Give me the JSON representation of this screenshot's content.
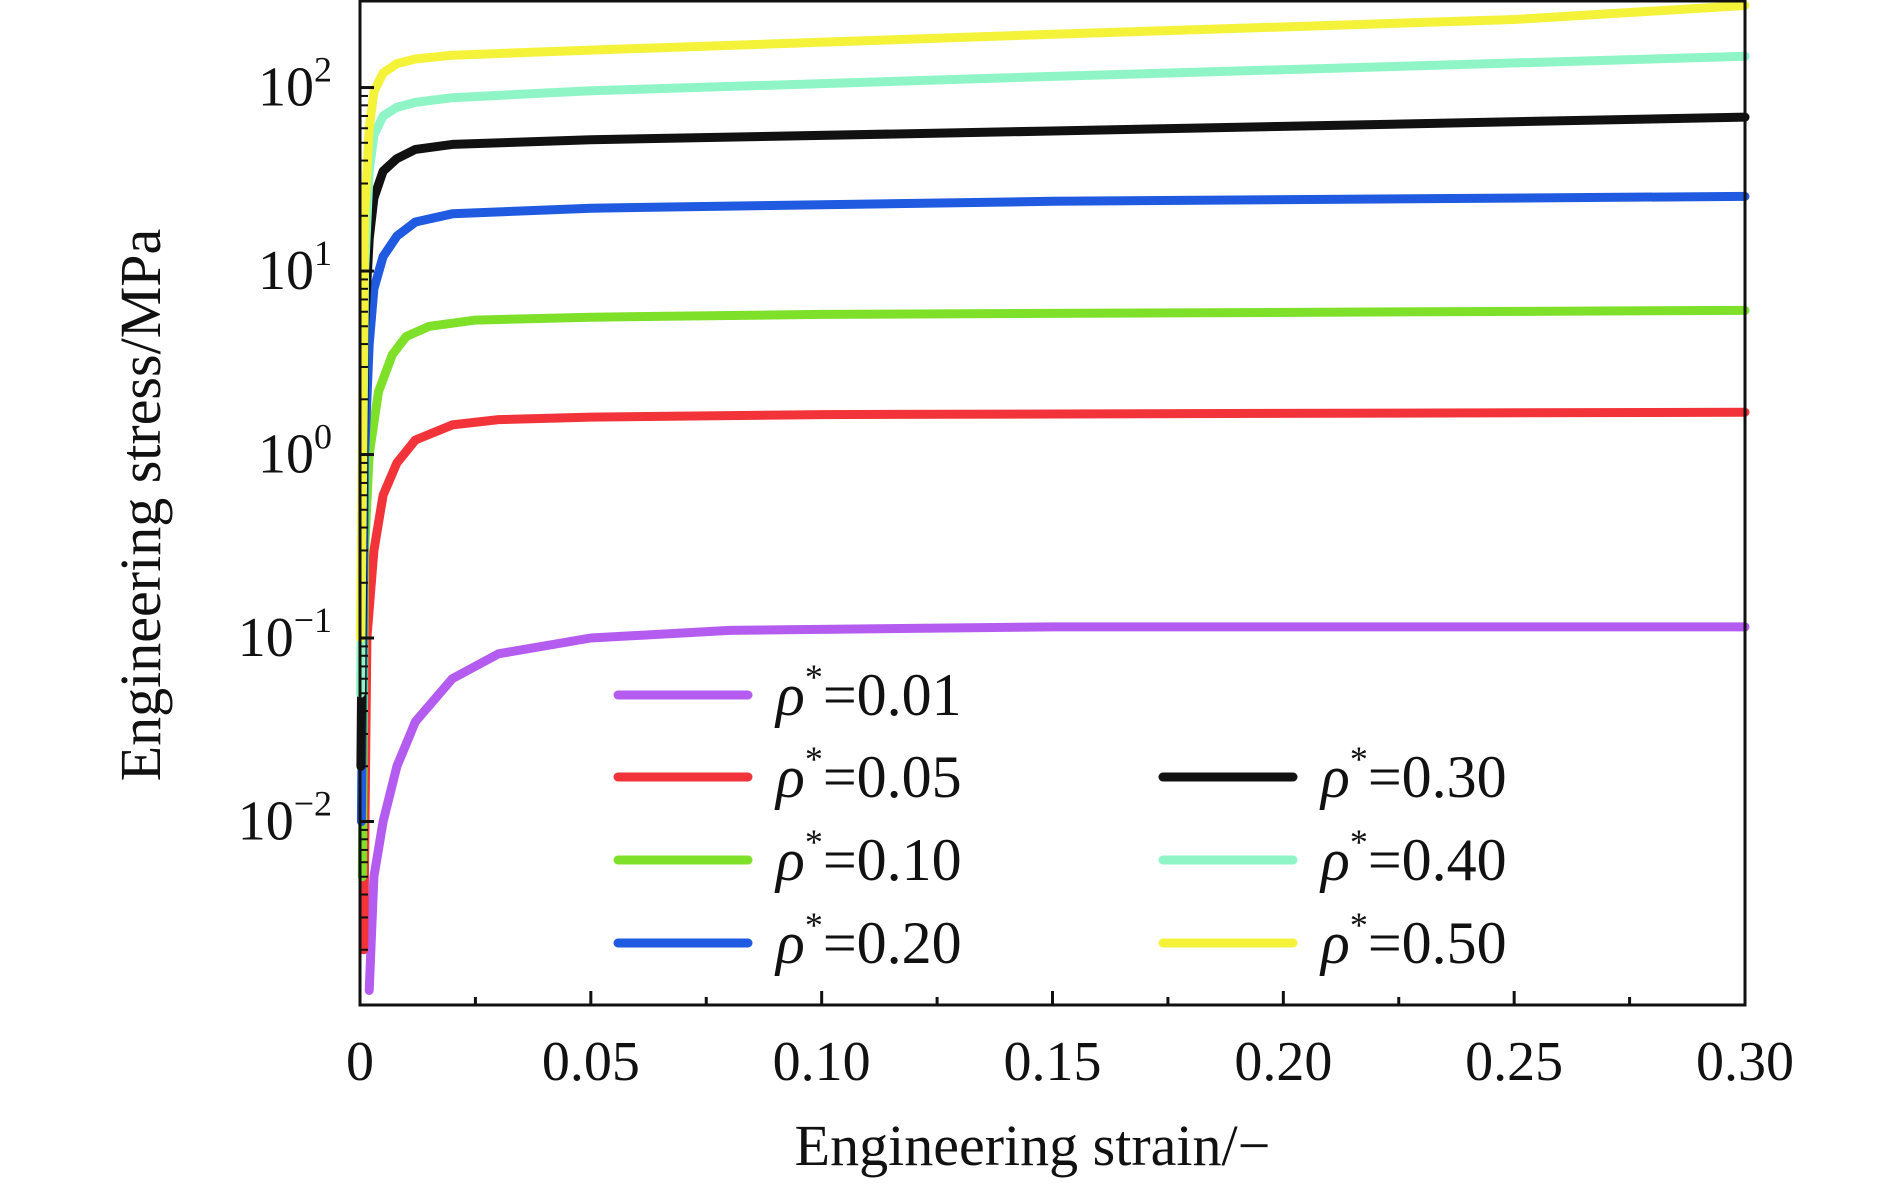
{
  "chart_data": {
    "type": "line",
    "title": "",
    "xlabel": "Engineering strain/−",
    "ylabel": "Engineering stress/MPa",
    "xlim": [
      0,
      0.3
    ],
    "ylim": [
      0.001,
      300
    ],
    "yscale": "log",
    "grid": false,
    "legend": {
      "position": "bottom-right",
      "columns": 2
    },
    "x_ticks": [
      {
        "value": 0,
        "label": "0"
      },
      {
        "value": 0.05,
        "label": "0.05"
      },
      {
        "value": 0.1,
        "label": "0.10"
      },
      {
        "value": 0.15,
        "label": "0.15"
      },
      {
        "value": 0.2,
        "label": "0.20"
      },
      {
        "value": 0.25,
        "label": "0.25"
      },
      {
        "value": 0.3,
        "label": "0.30"
      }
    ],
    "y_ticks": [
      {
        "value": 0.01,
        "base": "10",
        "exp": "−2"
      },
      {
        "value": 0.1,
        "base": "10",
        "exp": "−1"
      },
      {
        "value": 1,
        "base": "10",
        "exp": "0"
      },
      {
        "value": 10,
        "base": "10",
        "exp": "1"
      },
      {
        "value": 100,
        "base": "10",
        "exp": "2"
      }
    ],
    "series": [
      {
        "name": "ρ*=0.01",
        "symbol": "ρ",
        "sup": "*",
        "value_text": "=0.01",
        "color": "#b45cf0",
        "x": [
          0.002,
          0.003,
          0.005,
          0.008,
          0.012,
          0.02,
          0.03,
          0.05,
          0.08,
          0.15,
          0.3
        ],
        "y": [
          0.0012,
          0.005,
          0.01,
          0.02,
          0.035,
          0.06,
          0.082,
          0.1,
          0.11,
          0.115,
          0.115
        ]
      },
      {
        "name": "ρ*=0.05",
        "symbol": "ρ",
        "sup": "*",
        "value_text": "=0.05",
        "color": "#f2343a",
        "x": [
          0.0008,
          0.0015,
          0.003,
          0.005,
          0.008,
          0.012,
          0.02,
          0.03,
          0.05,
          0.1,
          0.3
        ],
        "y": [
          0.002,
          0.1,
          0.3,
          0.6,
          0.9,
          1.2,
          1.45,
          1.55,
          1.6,
          1.65,
          1.7
        ]
      },
      {
        "name": "ρ*=0.10",
        "symbol": "ρ",
        "sup": "*",
        "value_text": "=0.10",
        "color": "#7fe02a",
        "x": [
          0.0005,
          0.001,
          0.002,
          0.004,
          0.007,
          0.01,
          0.015,
          0.025,
          0.05,
          0.1,
          0.3
        ],
        "y": [
          0.005,
          0.3,
          1.0,
          2.2,
          3.5,
          4.4,
          5.0,
          5.4,
          5.6,
          5.8,
          6.1
        ]
      },
      {
        "name": "ρ*=0.20",
        "symbol": "ρ",
        "sup": "*",
        "value_text": "=0.20",
        "color": "#1f5ae0",
        "x": [
          0.0003,
          0.001,
          0.002,
          0.003,
          0.005,
          0.008,
          0.012,
          0.02,
          0.05,
          0.15,
          0.3
        ],
        "y": [
          0.01,
          1.0,
          4.0,
          8.0,
          12.0,
          15.5,
          18.5,
          20.5,
          22.0,
          24.0,
          25.5
        ]
      },
      {
        "name": "ρ*=0.30",
        "symbol": "ρ",
        "sup": "*",
        "value_text": "=0.30",
        "color": "#111111",
        "x": [
          0.0002,
          0.001,
          0.002,
          0.003,
          0.005,
          0.008,
          0.012,
          0.02,
          0.05,
          0.15,
          0.3
        ],
        "y": [
          0.02,
          5.0,
          15.0,
          25.0,
          35.0,
          41.0,
          46.0,
          49.0,
          52.0,
          58.0,
          69.0
        ]
      },
      {
        "name": "ρ*=0.40",
        "symbol": "ρ",
        "sup": "*",
        "value_text": "=0.40",
        "color": "#8ff5c6",
        "x": [
          0.0001,
          0.001,
          0.002,
          0.003,
          0.005,
          0.008,
          0.012,
          0.02,
          0.05,
          0.15,
          0.3
        ],
        "y": [
          0.05,
          10.0,
          35.0,
          55.0,
          70.0,
          78.0,
          83.0,
          88.0,
          96.0,
          115.0,
          148.0
        ]
      },
      {
        "name": "ρ*=0.50",
        "symbol": "ρ",
        "sup": "*",
        "value_text": "=0.50",
        "color": "#f5f23a",
        "x": [
          0.0001,
          0.001,
          0.002,
          0.003,
          0.005,
          0.008,
          0.012,
          0.02,
          0.05,
          0.15,
          0.25,
          0.3
        ],
        "y": [
          0.1,
          20.0,
          60.0,
          95.0,
          120.0,
          135.0,
          143.0,
          150.0,
          160.0,
          195.0,
          235.0,
          280.0
        ]
      }
    ]
  }
}
